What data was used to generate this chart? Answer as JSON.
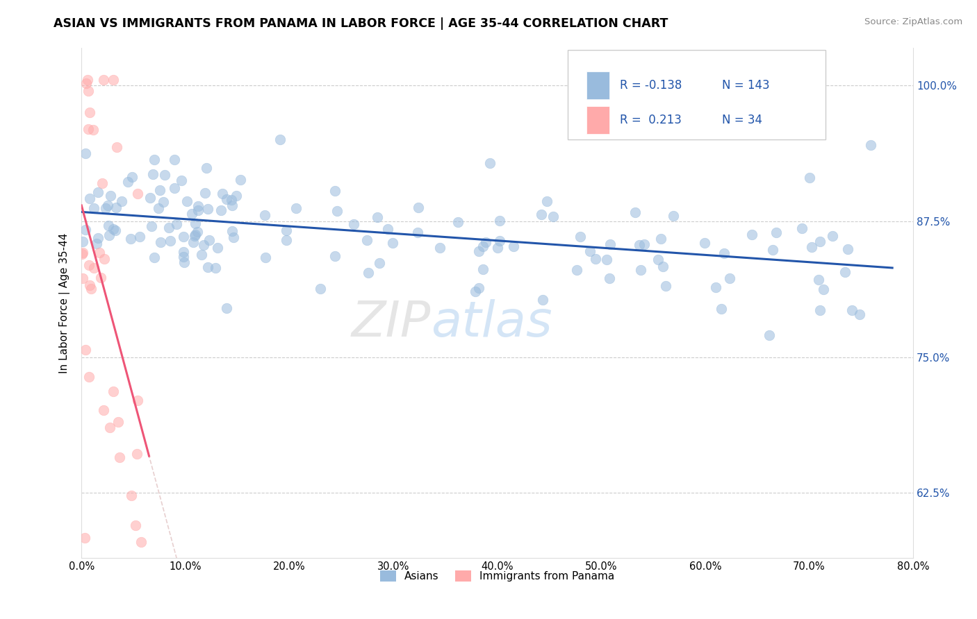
{
  "title": "ASIAN VS IMMIGRANTS FROM PANAMA IN LABOR FORCE | AGE 35-44 CORRELATION CHART",
  "source": "Source: ZipAtlas.com",
  "ylabel": "In Labor Force | Age 35-44",
  "xlim": [
    0.0,
    0.8
  ],
  "ylim": [
    0.565,
    1.035
  ],
  "yticks": [
    0.625,
    0.75,
    0.875,
    1.0
  ],
  "ytick_labels": [
    "62.5%",
    "75.0%",
    "87.5%",
    "100.0%"
  ],
  "xticks": [
    0.0,
    0.1,
    0.2,
    0.3,
    0.4,
    0.5,
    0.6,
    0.7,
    0.8
  ],
  "xtick_labels": [
    "0.0%",
    "10.0%",
    "20.0%",
    "30.0%",
    "40.0%",
    "50.0%",
    "60.0%",
    "70.0%",
    "80.0%"
  ],
  "legend_R_asian": "-0.138",
  "legend_N_asian": "143",
  "legend_R_panama": " 0.213",
  "legend_N_panama": " 34",
  "blue_color": "#99BBDD",
  "pink_color": "#FFAAAA",
  "blue_line_color": "#2255AA",
  "pink_line_color": "#EE5577",
  "blue_legend_color": "#99BBDD",
  "pink_legend_color": "#FFAAAA"
}
